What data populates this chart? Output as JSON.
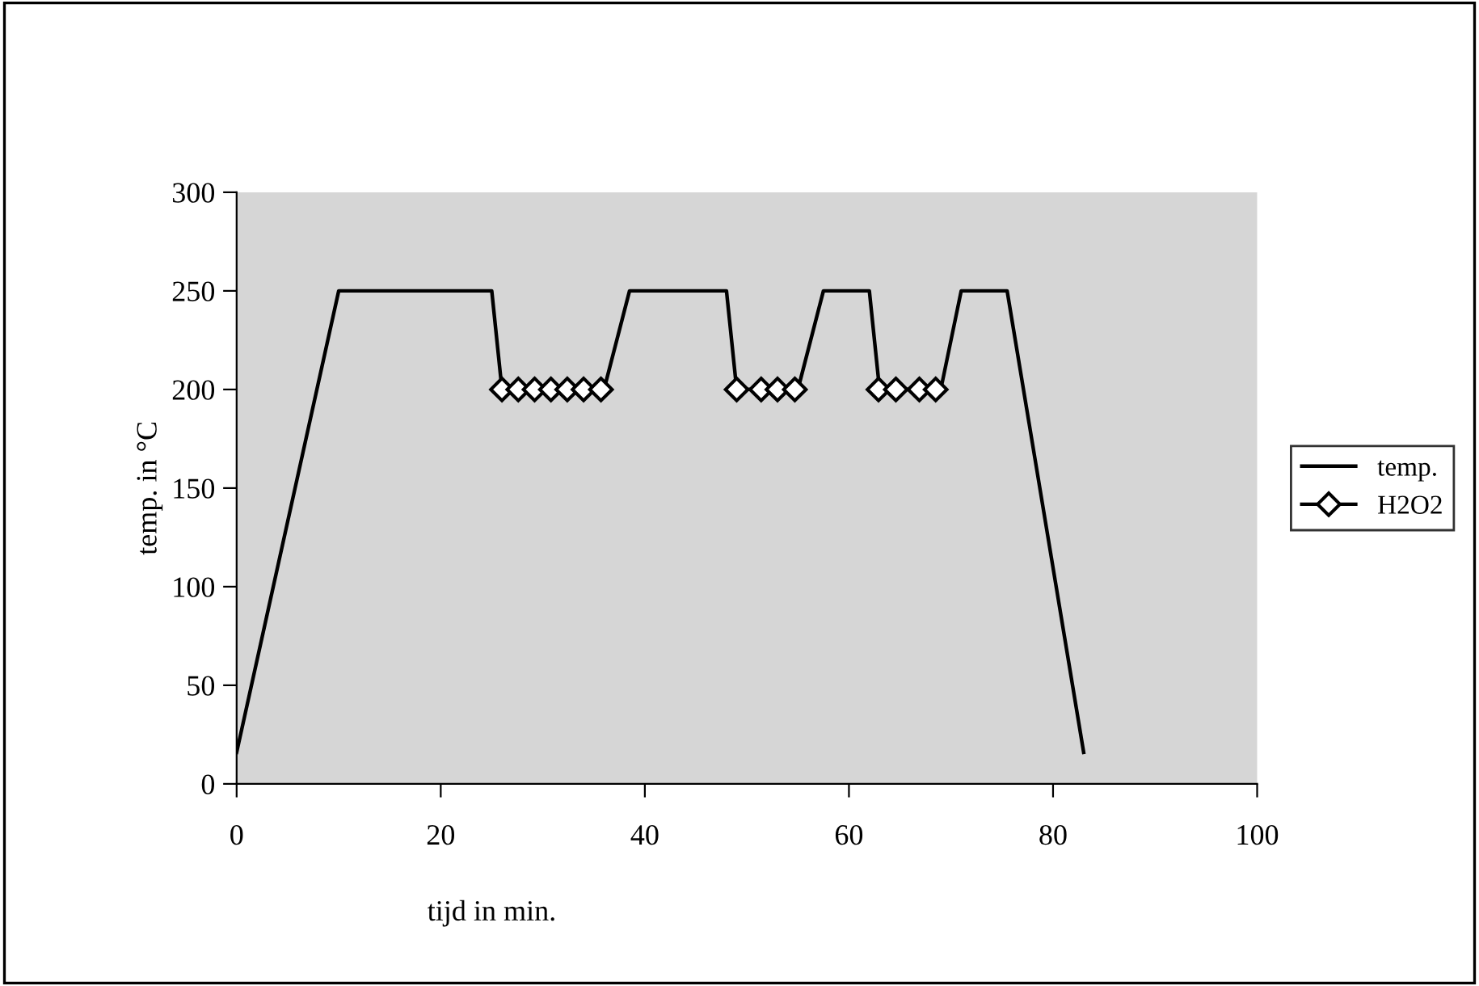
{
  "chart_data": {
    "type": "line",
    "xlabel": "tijd in min.",
    "ylabel": "temp. in °C",
    "xlim": [
      0,
      100
    ],
    "xticks": [
      0,
      20,
      40,
      60,
      80,
      100
    ],
    "ylim": [
      0,
      300
    ],
    "yticks": [
      0,
      50,
      100,
      150,
      200,
      250,
      300
    ],
    "grid": false,
    "legend": "right",
    "series": [
      {
        "name": "temp.",
        "color": "#000000",
        "marker": "none",
        "x": [
          0,
          10,
          25,
          26,
          36,
          38.5,
          48,
          49,
          55,
          57.5,
          62,
          63,
          69,
          71,
          75.5,
          83
        ],
        "values": [
          16,
          250,
          250,
          200,
          200,
          250,
          250,
          200,
          200,
          250,
          250,
          200,
          200,
          250,
          250,
          16
        ]
      },
      {
        "name": "H2O2",
        "color": "#000000",
        "marker": "diamond",
        "x": [
          26,
          27.6,
          29.2,
          30.8,
          32.4,
          34,
          35.7,
          42,
          49,
          51.4,
          53,
          54.7,
          59,
          62.9,
          64.6,
          66.9,
          68.5
        ],
        "values": [
          200,
          200,
          200,
          200,
          200,
          200,
          200,
          null,
          200,
          200,
          200,
          200,
          null,
          200,
          200,
          200,
          200
        ]
      }
    ]
  }
}
